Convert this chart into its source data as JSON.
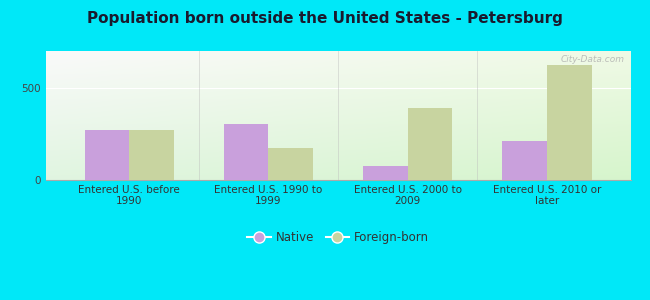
{
  "title": "Population born outside the United States - Petersburg",
  "categories": [
    "Entered U.S. before\n1990",
    "Entered U.S. 1990 to\n1999",
    "Entered U.S. 2000 to\n2009",
    "Entered U.S. 2010 or\nlater"
  ],
  "native_values": [
    270,
    305,
    75,
    210
  ],
  "foreign_values": [
    270,
    175,
    390,
    625
  ],
  "native_color": "#c9a0dc",
  "foreign_color": "#c8d4a0",
  "background_outer": "#00e8f8",
  "ylim": [
    0,
    700
  ],
  "yticks": [
    0,
    500
  ],
  "bar_width": 0.32,
  "legend_native": "Native",
  "legend_foreign": "Foreign-born",
  "title_fontsize": 11,
  "tick_fontsize": 7.5,
  "legend_fontsize": 8.5,
  "watermark": "City-Data.com"
}
